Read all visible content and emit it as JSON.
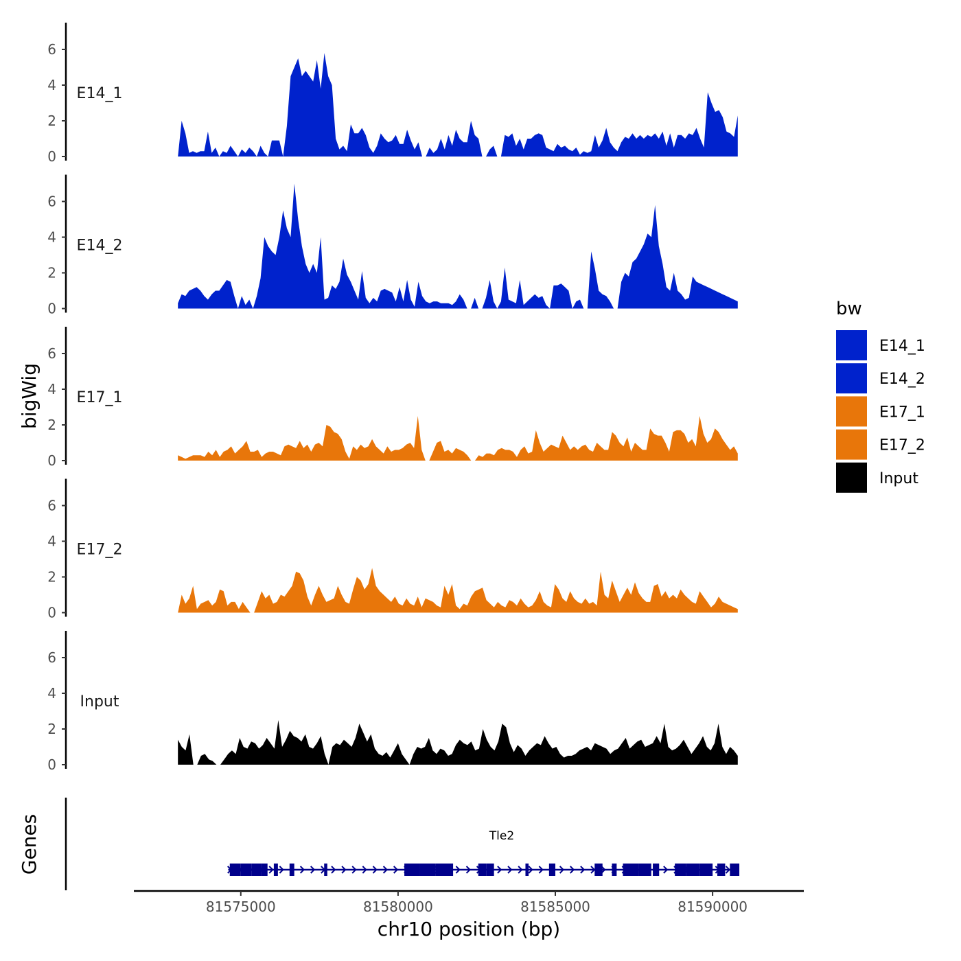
{
  "chart_data": {
    "type": "area",
    "ylabel": "bigWig",
    "xlabel": "chr10 position (bp)",
    "y_ticks": [
      "0",
      "2",
      "4",
      "6"
    ],
    "ylim": [
      0,
      7.5
    ],
    "xlim": [
      81571600,
      81592900
    ],
    "x_ticks": [
      {
        "value": 81575000,
        "label": "81575000"
      },
      {
        "value": 81580000,
        "label": "81580000"
      },
      {
        "value": 81585000,
        "label": "81585000"
      },
      {
        "value": 81590000,
        "label": "81590000"
      }
    ],
    "data_x_range": [
      81573000,
      81590800
    ],
    "legend": {
      "title": "bw",
      "entries": [
        {
          "label": "E14_1",
          "color": "#0022cc"
        },
        {
          "label": "E14_2",
          "color": "#0022cc"
        },
        {
          "label": "E17_1",
          "color": "#e8760a"
        },
        {
          "label": "E17_2",
          "color": "#e8760a"
        },
        {
          "label": "Input",
          "color": "#000000"
        }
      ]
    },
    "tracks": [
      {
        "name": "E14_1",
        "color": "#0022cc",
        "values": [
          0.0,
          2.0,
          1.3,
          0.2,
          0.3,
          0.2,
          0.3,
          0.3,
          1.4,
          0.2,
          0.5,
          0.0,
          0.3,
          0.2,
          0.6,
          0.3,
          0.0,
          0.4,
          0.2,
          0.5,
          0.3,
          0.0,
          0.6,
          0.2,
          0.0,
          0.9,
          0.9,
          0.9,
          0.0,
          1.7,
          4.5,
          5.0,
          5.5,
          4.5,
          4.8,
          4.5,
          4.2,
          5.4,
          3.8,
          5.8,
          4.5,
          4.0,
          1.0,
          0.4,
          0.6,
          0.3,
          1.8,
          1.3,
          1.3,
          1.6,
          1.2,
          0.5,
          0.2,
          0.6,
          1.3,
          1.0,
          0.8,
          0.9,
          1.2,
          0.7,
          0.7,
          1.5,
          0.9,
          0.4,
          0.8,
          0.0,
          0.0,
          0.5,
          0.2,
          0.4,
          1.0,
          0.4,
          1.2,
          0.6,
          1.5,
          1.0,
          0.8,
          0.8,
          2.0,
          1.2,
          1.0,
          0.0,
          0.0,
          0.4,
          0.6,
          0.0,
          0.0,
          1.2,
          1.1,
          1.3,
          0.6,
          1.0,
          0.4,
          1.0,
          1.0,
          1.2,
          1.3,
          1.2,
          0.5,
          0.4,
          0.3,
          0.7,
          0.5,
          0.6,
          0.4,
          0.3,
          0.5,
          0.1,
          0.3,
          0.2,
          0.3,
          1.2,
          0.5,
          0.9,
          1.6,
          0.8,
          0.5,
          0.3,
          0.8,
          1.1,
          1.0,
          1.3,
          1.0,
          1.2,
          1.0,
          1.2,
          1.1,
          1.3,
          1.0,
          1.4,
          0.6,
          1.3,
          0.5,
          1.2,
          1.2,
          1.0,
          1.3,
          1.2,
          1.6,
          1.0,
          0.5,
          3.6,
          3.0,
          2.5,
          2.6,
          2.2,
          1.4,
          1.3,
          1.1,
          2.3
        ]
      },
      {
        "name": "E14_2",
        "color": "#0022cc",
        "values": [
          0.3,
          0.8,
          0.7,
          1.0,
          1.1,
          1.2,
          1.0,
          0.7,
          0.5,
          0.8,
          1.0,
          1.0,
          1.3,
          1.6,
          1.5,
          0.7,
          0.0,
          0.7,
          0.2,
          0.5,
          0.0,
          0.7,
          1.7,
          4.0,
          3.5,
          3.2,
          3.0,
          4.0,
          5.5,
          4.5,
          4.0,
          7.0,
          5.0,
          3.5,
          2.5,
          2.0,
          2.5,
          2.0,
          4.0,
          0.5,
          0.6,
          1.3,
          1.1,
          1.5,
          2.8,
          1.9,
          1.5,
          1.0,
          0.5,
          2.1,
          0.6,
          0.3,
          0.6,
          0.4,
          1.0,
          1.1,
          1.0,
          0.9,
          0.4,
          1.2,
          0.4,
          1.6,
          0.5,
          0.1,
          1.5,
          0.7,
          0.4,
          0.3,
          0.4,
          0.4,
          0.3,
          0.3,
          0.3,
          0.2,
          0.4,
          0.8,
          0.5,
          0.0,
          0.0,
          0.6,
          0.0,
          0.0,
          0.6,
          1.6,
          0.4,
          0.0,
          0.4,
          2.3,
          0.5,
          0.4,
          0.3,
          1.6,
          0.2,
          0.4,
          0.6,
          0.8,
          0.6,
          0.7,
          0.2,
          0.0,
          1.3,
          1.3,
          1.4,
          1.2,
          1.0,
          0.0,
          0.4,
          0.5,
          0.0,
          0.0,
          3.2,
          2.2,
          1.0,
          0.8,
          0.7,
          0.4,
          0.0,
          0.0,
          1.5,
          2.0,
          1.8,
          2.6,
          2.8,
          3.2,
          3.6,
          4.2,
          4.0,
          5.8,
          3.5,
          2.5,
          1.2,
          1.0,
          2.0,
          1.0,
          0.8,
          0.5,
          0.6,
          1.8,
          1.5,
          1.4,
          1.3,
          1.2,
          1.1,
          1.0,
          0.9,
          0.8,
          0.7,
          0.6,
          0.5,
          0.4
        ]
      },
      {
        "name": "E17_1",
        "color": "#e8760a",
        "values": [
          0.3,
          0.2,
          0.1,
          0.2,
          0.3,
          0.3,
          0.3,
          0.2,
          0.5,
          0.3,
          0.6,
          0.2,
          0.5,
          0.6,
          0.8,
          0.4,
          0.6,
          0.8,
          1.1,
          0.5,
          0.5,
          0.6,
          0.2,
          0.4,
          0.5,
          0.5,
          0.4,
          0.3,
          0.8,
          0.9,
          0.8,
          0.7,
          1.1,
          0.7,
          0.9,
          0.5,
          0.9,
          1.0,
          0.8,
          2.0,
          1.9,
          1.6,
          1.5,
          1.2,
          0.5,
          0.1,
          0.8,
          0.6,
          0.9,
          0.7,
          0.8,
          1.2,
          0.8,
          0.6,
          0.4,
          0.8,
          0.5,
          0.6,
          0.6,
          0.7,
          0.9,
          1.0,
          0.7,
          2.5,
          0.6,
          0.0,
          0.0,
          0.5,
          1.0,
          1.1,
          0.5,
          0.6,
          0.4,
          0.7,
          0.6,
          0.5,
          0.3,
          0.0,
          0.0,
          0.3,
          0.2,
          0.4,
          0.4,
          0.3,
          0.6,
          0.7,
          0.6,
          0.6,
          0.5,
          0.2,
          0.6,
          0.8,
          0.4,
          0.5,
          1.7,
          1.0,
          0.5,
          0.7,
          0.9,
          0.8,
          0.7,
          1.4,
          1.0,
          0.6,
          0.8,
          0.6,
          0.8,
          0.9,
          0.6,
          0.5,
          1.0,
          0.8,
          0.6,
          0.6,
          1.6,
          1.4,
          1.0,
          0.8,
          1.3,
          0.5,
          1.0,
          0.8,
          0.6,
          0.6,
          1.8,
          1.5,
          1.4,
          1.4,
          1.0,
          0.5,
          1.6,
          1.7,
          1.7,
          1.5,
          1.0,
          1.2,
          0.8,
          2.5,
          1.5,
          1.0,
          1.2,
          1.8,
          1.6,
          1.2,
          0.9,
          0.6,
          0.8,
          0.4
        ]
      },
      {
        "name": "E17_2",
        "color": "#e8760a",
        "values": [
          0.0,
          1.0,
          0.5,
          0.8,
          1.5,
          0.2,
          0.5,
          0.6,
          0.7,
          0.4,
          0.6,
          1.3,
          1.2,
          0.4,
          0.6,
          0.6,
          0.2,
          0.6,
          0.3,
          0.0,
          0.0,
          0.6,
          1.2,
          0.8,
          1.0,
          0.5,
          0.6,
          1.0,
          0.9,
          1.2,
          1.5,
          2.3,
          2.2,
          1.8,
          0.9,
          0.4,
          1.0,
          1.5,
          1.0,
          0.6,
          0.7,
          0.8,
          1.5,
          1.0,
          0.6,
          0.5,
          1.3,
          2.0,
          1.8,
          1.3,
          1.6,
          2.5,
          1.5,
          1.2,
          1.0,
          0.8,
          0.6,
          0.9,
          0.5,
          0.4,
          0.8,
          0.5,
          0.4,
          0.9,
          0.3,
          0.8,
          0.7,
          0.6,
          0.4,
          0.3,
          1.5,
          1.0,
          1.6,
          0.4,
          0.2,
          0.5,
          0.4,
          0.9,
          1.2,
          1.3,
          1.4,
          0.7,
          0.5,
          0.3,
          0.6,
          0.4,
          0.3,
          0.7,
          0.6,
          0.4,
          0.8,
          0.5,
          0.3,
          0.4,
          0.7,
          1.2,
          0.6,
          0.4,
          0.3,
          1.6,
          1.3,
          0.8,
          0.6,
          1.2,
          0.8,
          0.6,
          0.5,
          0.8,
          0.5,
          0.6,
          0.4,
          2.3,
          1.0,
          0.8,
          1.8,
          1.2,
          0.6,
          1.0,
          1.4,
          1.0,
          1.7,
          1.1,
          0.8,
          0.6,
          0.6,
          1.5,
          1.6,
          0.9,
          1.2,
          0.8,
          1.0,
          0.8,
          1.3,
          1.0,
          0.8,
          0.6,
          0.5,
          1.2,
          0.9,
          0.6,
          0.3,
          0.5,
          0.9,
          0.6,
          0.5,
          0.4,
          0.3,
          0.2
        ]
      },
      {
        "name": "Input",
        "color": "#000000",
        "values": [
          1.4,
          1.0,
          0.8,
          1.7,
          0.0,
          0.0,
          0.5,
          0.6,
          0.3,
          0.2,
          0.0,
          0.0,
          0.3,
          0.6,
          0.8,
          0.6,
          1.5,
          1.0,
          0.9,
          1.3,
          1.2,
          0.9,
          1.1,
          1.5,
          1.2,
          0.9,
          2.5,
          1.0,
          1.4,
          1.9,
          1.6,
          1.5,
          1.3,
          1.7,
          1.0,
          0.9,
          1.2,
          1.6,
          0.6,
          0.0,
          1.0,
          1.2,
          1.1,
          1.4,
          1.2,
          1.0,
          1.5,
          2.3,
          1.8,
          1.3,
          1.7,
          0.9,
          0.6,
          0.5,
          0.7,
          0.4,
          0.8,
          1.2,
          0.6,
          0.3,
          0.0,
          0.6,
          1.0,
          0.9,
          1.0,
          1.5,
          0.8,
          0.6,
          0.9,
          0.8,
          0.5,
          0.6,
          1.1,
          1.4,
          1.2,
          1.1,
          1.3,
          0.8,
          0.9,
          2.0,
          1.4,
          1.0,
          0.8,
          1.3,
          2.3,
          2.1,
          1.2,
          0.7,
          1.1,
          0.9,
          0.5,
          0.8,
          1.0,
          1.2,
          1.1,
          1.6,
          1.2,
          0.9,
          1.0,
          0.6,
          0.4,
          0.5,
          0.5,
          0.6,
          0.8,
          0.9,
          1.0,
          0.8,
          1.2,
          1.1,
          1.0,
          0.9,
          0.6,
          0.8,
          0.9,
          1.2,
          1.5,
          0.9,
          1.1,
          1.3,
          1.4,
          1.0,
          1.1,
          1.2,
          1.6,
          1.2,
          2.3,
          1.0,
          0.8,
          0.9,
          1.1,
          1.4,
          1.0,
          0.6,
          0.9,
          1.2,
          1.6,
          1.0,
          0.8,
          1.2,
          2.3,
          1.0,
          0.6,
          1.0,
          0.8,
          0.5
        ]
      }
    ],
    "genes_label": "Genes",
    "gene": {
      "name": "Tle2",
      "start": 81574600,
      "end": 81590800,
      "strand": "+",
      "color": "#00008b",
      "exons": [
        [
          81574650,
          81575000
        ],
        [
          81575000,
          81575350
        ],
        [
          81575350,
          81575650
        ],
        [
          81575650,
          81575850
        ],
        [
          81576050,
          81576180
        ],
        [
          81576550,
          81576700
        ],
        [
          81577650,
          81577750
        ],
        [
          81580200,
          81580700
        ],
        [
          81580700,
          81581200
        ],
        [
          81581200,
          81581750
        ],
        [
          81582550,
          81582800
        ],
        [
          81582800,
          81583050
        ],
        [
          81584050,
          81584150
        ],
        [
          81584800,
          81585000
        ],
        [
          81586250,
          81586500
        ],
        [
          81586800,
          81586950
        ],
        [
          81587150,
          81587650
        ],
        [
          81587650,
          81588050
        ],
        [
          81588100,
          81588300
        ],
        [
          81588800,
          81589150
        ],
        [
          81589150,
          81589600
        ],
        [
          81589600,
          81590000
        ],
        [
          81590150,
          81590400
        ],
        [
          81590550,
          81590850
        ]
      ]
    }
  }
}
